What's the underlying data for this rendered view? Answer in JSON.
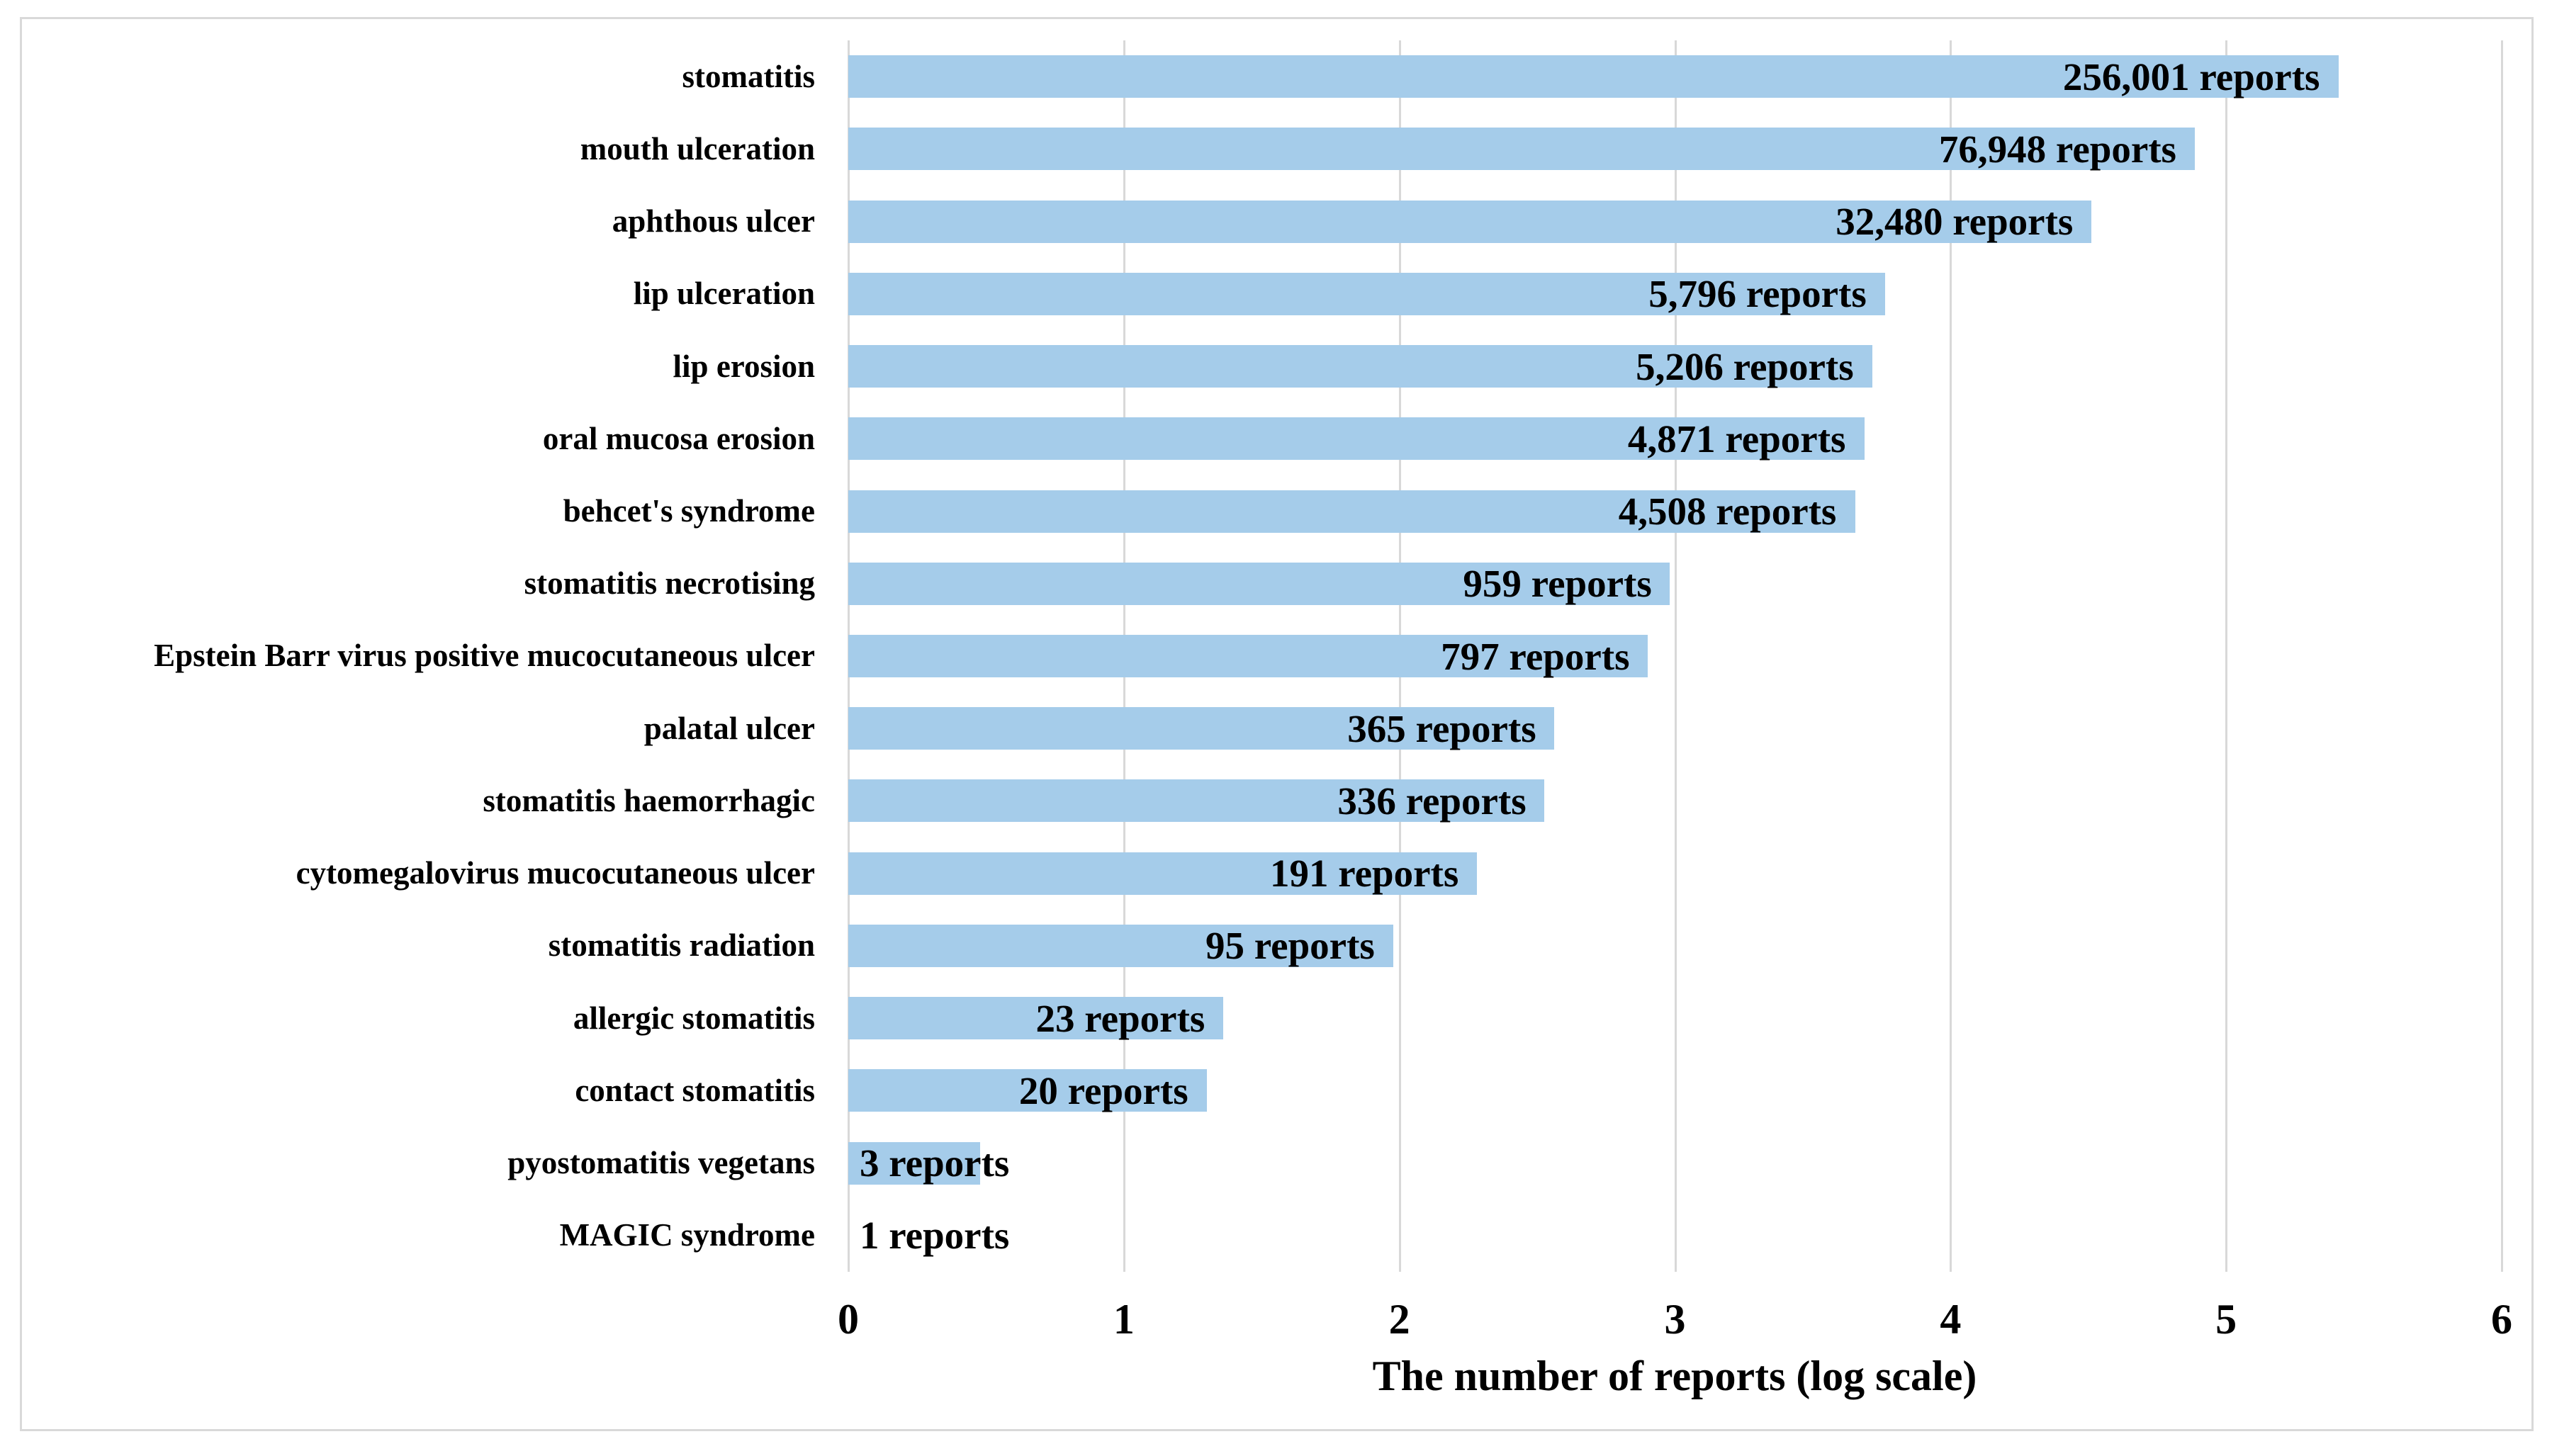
{
  "chart_data": {
    "type": "bar",
    "orientation": "horizontal",
    "title": "",
    "xlabel": "The number of reports (log scale)",
    "ylabel": "",
    "xlim": [
      0,
      6
    ],
    "x_ticks": [
      "0",
      "1",
      "2",
      "3",
      "4",
      "5",
      "6"
    ],
    "grid": true,
    "legend": false,
    "scale_note": "bar length = log10(number of reports)",
    "bar_color": "#a5ccea",
    "gridline_color": "#d8d8d8",
    "text_color": "#000000",
    "rows": [
      {
        "category": "stomatitis",
        "reports": 256001,
        "label": "256,001 reports"
      },
      {
        "category": "mouth ulceration",
        "reports": 76948,
        "label": "76,948 reports"
      },
      {
        "category": "aphthous ulcer",
        "reports": 32480,
        "label": "32,480 reports"
      },
      {
        "category": "lip ulceration",
        "reports": 5796,
        "label": "5,796 reports"
      },
      {
        "category": "lip erosion",
        "reports": 5206,
        "label": "5,206 reports"
      },
      {
        "category": "oral mucosa erosion",
        "reports": 4871,
        "label": "4,871 reports"
      },
      {
        "category": "behcet's syndrome",
        "reports": 4508,
        "label": "4,508 reports"
      },
      {
        "category": "stomatitis necrotising",
        "reports": 959,
        "label": "959 reports"
      },
      {
        "category": "Epstein Barr virus positive mucocutaneous ulcer",
        "reports": 797,
        "label": "797 reports"
      },
      {
        "category": "palatal ulcer",
        "reports": 365,
        "label": "365 reports"
      },
      {
        "category": "stomatitis haemorrhagic",
        "reports": 336,
        "label": "336 reports"
      },
      {
        "category": "cytomegalovirus mucocutaneous ulcer",
        "reports": 191,
        "label": "191 reports"
      },
      {
        "category": "stomatitis radiation",
        "reports": 95,
        "label": "95 reports"
      },
      {
        "category": "allergic stomatitis",
        "reports": 23,
        "label": "23 reports"
      },
      {
        "category": "contact stomatitis",
        "reports": 20,
        "label": "20 reports"
      },
      {
        "category": "pyostomatitis vegetans",
        "reports": 3,
        "label": "3 reports"
      },
      {
        "category": "MAGIC syndrome",
        "reports": 1,
        "label": "1 reports"
      }
    ]
  }
}
